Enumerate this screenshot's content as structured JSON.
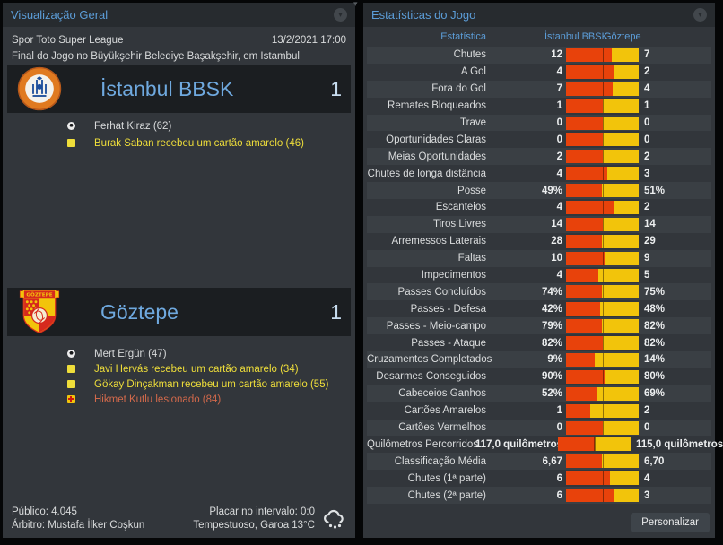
{
  "colors": {
    "accent_blue": "#5C9DD8",
    "bar_home_red": "#E8420B",
    "bar_away_yellow": "#F2C40B",
    "goal_text": "#D9DBDC",
    "yellow_card_text": "#EFDE3A",
    "injury_text": "#D2694B"
  },
  "left_panel": {
    "title": "Visualização Geral",
    "competition": "Spor Toto Super League",
    "datetime": "13/2/2021 17:00",
    "venue_line": "Final do Jogo no Büyükşehir Belediye Başakşehir, em Istambul",
    "home_team": {
      "name": "İstanbul BBSK",
      "score": "1",
      "events": [
        {
          "type": "goal",
          "text": "Ferhat Kiraz (62)"
        },
        {
          "type": "yellow-card",
          "text": "Burak Saban recebeu um cartão amarelo (46)"
        }
      ]
    },
    "away_team": {
      "name": "Göztepe",
      "score": "1",
      "events": [
        {
          "type": "goal",
          "text": "Mert Ergün (47)"
        },
        {
          "type": "yellow-card",
          "text": "Javi Hervás recebeu um cartão amarelo (34)"
        },
        {
          "type": "yellow-card",
          "text": "Gökay Dinçakman recebeu um cartão amarelo (55)"
        },
        {
          "type": "injury",
          "text": "Hikmet Kutlu lesionado (84)"
        }
      ]
    },
    "footer": {
      "attendance": "Público: 4.045",
      "referee": "Árbitro: Mustafa İlker Coşkun",
      "halftime_score": "Placar no intervalo: 0:0",
      "weather": "Tempestuoso, Garoa 13°C"
    }
  },
  "right_panel": {
    "title": "Estatísticas do Jogo",
    "personalize_label": "Personalizar"
  },
  "chart_data": {
    "type": "table",
    "title": "Estatísticas do Jogo",
    "columns": [
      "Estatística",
      "İstanbul BBSK",
      "Göztepe"
    ],
    "rows": [
      {
        "label": "Chutes",
        "home": "12",
        "away": "7",
        "home_num": 12,
        "away_num": 7
      },
      {
        "label": "A Gol",
        "home": "4",
        "away": "2",
        "home_num": 4,
        "away_num": 2
      },
      {
        "label": "Fora do Gol",
        "home": "7",
        "away": "4",
        "home_num": 7,
        "away_num": 4
      },
      {
        "label": "Remates Bloqueados",
        "home": "1",
        "away": "1",
        "home_num": 1,
        "away_num": 1
      },
      {
        "label": "Trave",
        "home": "0",
        "away": "0",
        "home_num": 0,
        "away_num": 0
      },
      {
        "label": "Oportunidades Claras",
        "home": "0",
        "away": "0",
        "home_num": 0,
        "away_num": 0
      },
      {
        "label": "Meias Oportunidades",
        "home": "2",
        "away": "2",
        "home_num": 2,
        "away_num": 2
      },
      {
        "label": "Chutes de longa distância",
        "home": "4",
        "away": "3",
        "home_num": 4,
        "away_num": 3
      },
      {
        "label": "Posse",
        "home": "49%",
        "away": "51%",
        "home_num": 49,
        "away_num": 51
      },
      {
        "label": "Escanteios",
        "home": "4",
        "away": "2",
        "home_num": 4,
        "away_num": 2
      },
      {
        "label": "Tiros Livres",
        "home": "14",
        "away": "14",
        "home_num": 14,
        "away_num": 14
      },
      {
        "label": "Arremessos Laterais",
        "home": "28",
        "away": "29",
        "home_num": 28,
        "away_num": 29
      },
      {
        "label": "Faltas",
        "home": "10",
        "away": "9",
        "home_num": 10,
        "away_num": 9
      },
      {
        "label": "Impedimentos",
        "home": "4",
        "away": "5",
        "home_num": 4,
        "away_num": 5
      },
      {
        "label": "Passes Concluídos",
        "home": "74%",
        "away": "75%",
        "home_num": 74,
        "away_num": 75
      },
      {
        "label": "Passes - Defesa",
        "home": "42%",
        "away": "48%",
        "home_num": 42,
        "away_num": 48
      },
      {
        "label": "Passes - Meio-campo",
        "home": "79%",
        "away": "82%",
        "home_num": 79,
        "away_num": 82
      },
      {
        "label": "Passes - Ataque",
        "home": "82%",
        "away": "82%",
        "home_num": 82,
        "away_num": 82
      },
      {
        "label": "Cruzamentos Completados",
        "home": "9%",
        "away": "14%",
        "home_num": 9,
        "away_num": 14
      },
      {
        "label": "Desarmes Conseguidos",
        "home": "90%",
        "away": "80%",
        "home_num": 90,
        "away_num": 80
      },
      {
        "label": "Cabeceios Ganhos",
        "home": "52%",
        "away": "69%",
        "home_num": 52,
        "away_num": 69
      },
      {
        "label": "Cartões Amarelos",
        "home": "1",
        "away": "2",
        "home_num": 1,
        "away_num": 2
      },
      {
        "label": "Cartões Vermelhos",
        "home": "0",
        "away": "0",
        "home_num": 0,
        "away_num": 0
      },
      {
        "label": "Quilômetros Percorridos",
        "home": "117,0 quilômetros",
        "away": "115,0 quilômetros",
        "home_num": 117,
        "away_num": 115
      },
      {
        "label": "Classificação Média",
        "home": "6,67",
        "away": "6,70",
        "home_num": 6.67,
        "away_num": 6.7
      },
      {
        "label": "Chutes (1ª parte)",
        "home": "6",
        "away": "4",
        "home_num": 6,
        "away_num": 4
      },
      {
        "label": "Chutes (2ª parte)",
        "home": "6",
        "away": "3",
        "home_num": 6,
        "away_num": 3
      }
    ]
  }
}
